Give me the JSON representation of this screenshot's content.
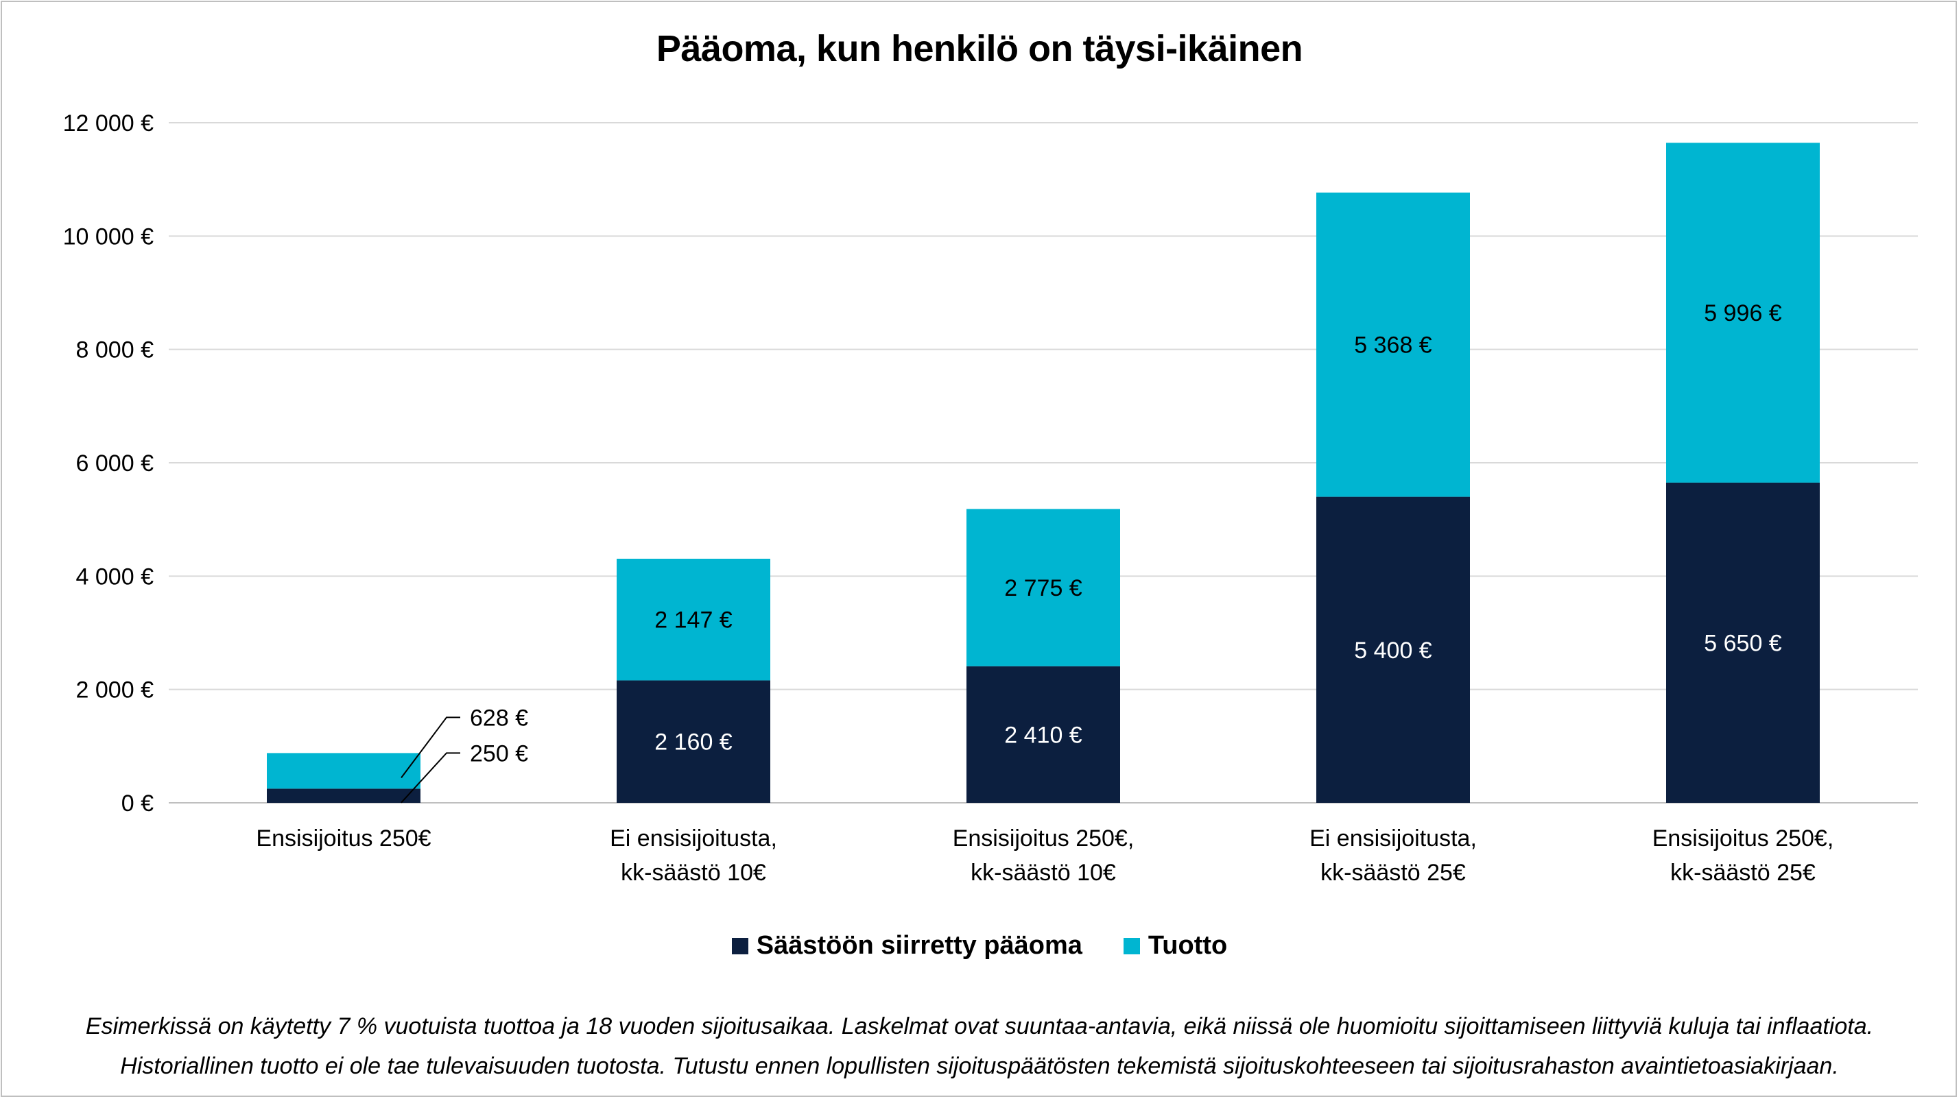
{
  "colors": {
    "principal": "#0c1f3f",
    "return": "#00b5d1",
    "gridline": "#d9d9d9",
    "axis": "#bfbfbf"
  },
  "chart_data": {
    "type": "bar",
    "stacked": true,
    "title": "Pääoma, kun henkilö on täysi-ikäinen",
    "xlabel": "",
    "ylabel": "",
    "ylim": [
      0,
      12000
    ],
    "y_ticks": [
      {
        "value": 0,
        "label": "0 €"
      },
      {
        "value": 2000,
        "label": "2 000 €"
      },
      {
        "value": 4000,
        "label": "4 000 €"
      },
      {
        "value": 6000,
        "label": "6 000 €"
      },
      {
        "value": 8000,
        "label": "8 000 €"
      },
      {
        "value": 10000,
        "label": "10 000 €"
      },
      {
        "value": 12000,
        "label": "12 000 €"
      }
    ],
    "categories": [
      [
        "Ensisijoitus 250€"
      ],
      [
        "Ei ensisijoitusta,",
        "kk-säästö 10€"
      ],
      [
        "Ensisijoitus 250€,",
        "kk-säästö 10€"
      ],
      [
        "Ei ensisijoitusta,",
        "kk-säästö 25€"
      ],
      [
        "Ensisijoitus 250€,",
        "kk-säästö 25€"
      ]
    ],
    "series": [
      {
        "name": "Säästöön siirretty pääoma",
        "color_key": "principal",
        "values": [
          250,
          2160,
          2410,
          5400,
          5650
        ],
        "labels": [
          "250 €",
          "2 160 €",
          "2 410 €",
          "5 400 €",
          "5 650 €"
        ]
      },
      {
        "name": "Tuotto",
        "color_key": "return",
        "values": [
          628,
          2147,
          2775,
          5368,
          5996
        ],
        "labels": [
          "628 €",
          "2 147 €",
          "2 775 €",
          "5 368 €",
          "5 996 €"
        ]
      }
    ],
    "grid": true,
    "legend_position": "bottom"
  },
  "footnote": {
    "line1": "Esimerkissä on käytetty 7 % vuotuista tuottoa ja 18 vuoden sijoitusaikaa. Laskelmat ovat suuntaa-antavia, eikä niissä ole huomioitu sijoittamiseen liittyviä kuluja tai inflaatiota.",
    "line2": "Historiallinen tuotto ei ole tae tulevaisuuden tuotosta. Tutustu ennen lopullisten sijoituspäätösten tekemistä sijoituskohteeseen tai sijoitusrahaston avaintietoasiakirjaan."
  }
}
